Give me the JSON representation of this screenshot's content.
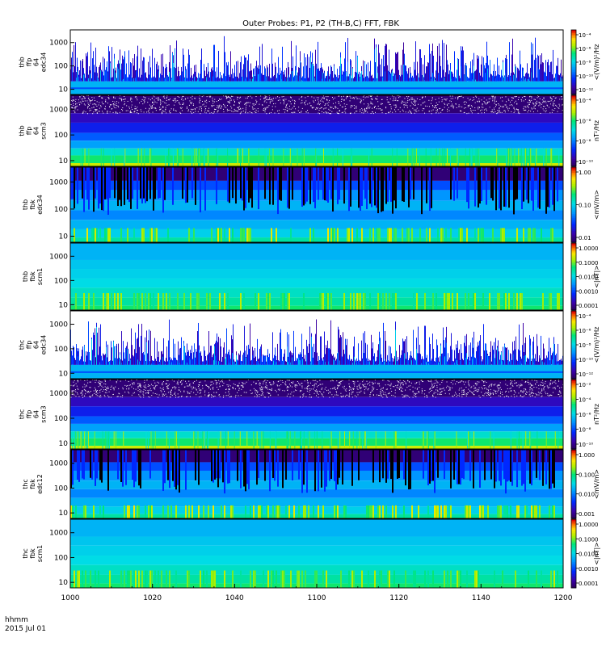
{
  "title": "Outer Probes: P1, P2 (TH-B,C) FFT, FBK",
  "x_axis": {
    "ticks": [
      "1000",
      "1020",
      "1040",
      "1100",
      "1120",
      "1140",
      "1200"
    ],
    "footer_line1": "hhmm",
    "footer_line2": "2015 Jul 01"
  },
  "chart_data": [
    {
      "type": "heatmap",
      "ylabel": [
        "thb",
        "ffp",
        "64",
        "edc34"
      ],
      "yticks": [
        "10",
        "100",
        "1000"
      ],
      "colorbar_label": "<(V/m)²/Hz",
      "colorbar_ticks": [
        "10⁻⁴",
        "10⁻⁶",
        "10⁻⁸",
        "10⁻¹⁰",
        "10⁻¹²"
      ],
      "style": "spiky"
    },
    {
      "type": "heatmap",
      "ylabel": [
        "thb",
        "ffp",
        "64",
        "scm3"
      ],
      "yticks": [
        "10",
        "100",
        "1000"
      ],
      "colorbar_label": "nT²/Hz",
      "colorbar_ticks": [
        "10⁻⁴",
        "10⁻⁶",
        "10⁻⁸",
        "10⁻¹⁰"
      ],
      "style": "banded"
    },
    {
      "type": "heatmap",
      "ylabel": [
        "thb",
        "fbk",
        "edc34"
      ],
      "yticks": [
        "10",
        "100",
        "1000"
      ],
      "colorbar_label": "<mV/m>",
      "colorbar_ticks": [
        "1.00",
        "0.10",
        "0.01"
      ],
      "style": "fbk-e"
    },
    {
      "type": "heatmap",
      "ylabel": [
        "thb",
        "fbk",
        "scm1"
      ],
      "yticks": [
        "10",
        "100",
        "1000"
      ],
      "colorbar_label": "<|nT|>",
      "colorbar_ticks": [
        "1.0000",
        "0.1000",
        "0.0100",
        "0.0010",
        "0.0001"
      ],
      "style": "fbk-b"
    },
    {
      "type": "heatmap",
      "ylabel": [
        "thc",
        "ffp",
        "64",
        "edc34"
      ],
      "yticks": [
        "10",
        "100",
        "1000"
      ],
      "colorbar_label": "<(V/m)²/Hz",
      "colorbar_ticks": [
        "10⁻⁴",
        "10⁻⁶",
        "10⁻⁸",
        "10⁻¹⁰",
        "10⁻¹²"
      ],
      "style": "spiky"
    },
    {
      "type": "heatmap",
      "ylabel": [
        "thc",
        "ffp",
        "64",
        "scm3"
      ],
      "yticks": [
        "10",
        "100",
        "1000"
      ],
      "colorbar_label": "nT²/Hz",
      "colorbar_ticks": [
        "10⁻²",
        "10⁻⁴",
        "10⁻⁶",
        "10⁻⁸",
        "10⁻¹⁰"
      ],
      "style": "banded"
    },
    {
      "type": "heatmap",
      "ylabel": [
        "thc",
        "fbk",
        "edc12"
      ],
      "yticks": [
        "10",
        "100",
        "1000"
      ],
      "colorbar_label": "<mV/m>",
      "colorbar_ticks": [
        "1.000",
        "0.100",
        "0.010",
        "0.001"
      ],
      "style": "fbk-e"
    },
    {
      "type": "heatmap",
      "ylabel": [
        "thc",
        "fbk",
        "scm1"
      ],
      "yticks": [
        "10",
        "100",
        "1000"
      ],
      "colorbar_label": "<|nT|>",
      "colorbar_ticks": [
        "1.0000",
        "0.1000",
        "0.0100",
        "0.0010",
        "0.0001"
      ],
      "style": "fbk-b"
    }
  ]
}
